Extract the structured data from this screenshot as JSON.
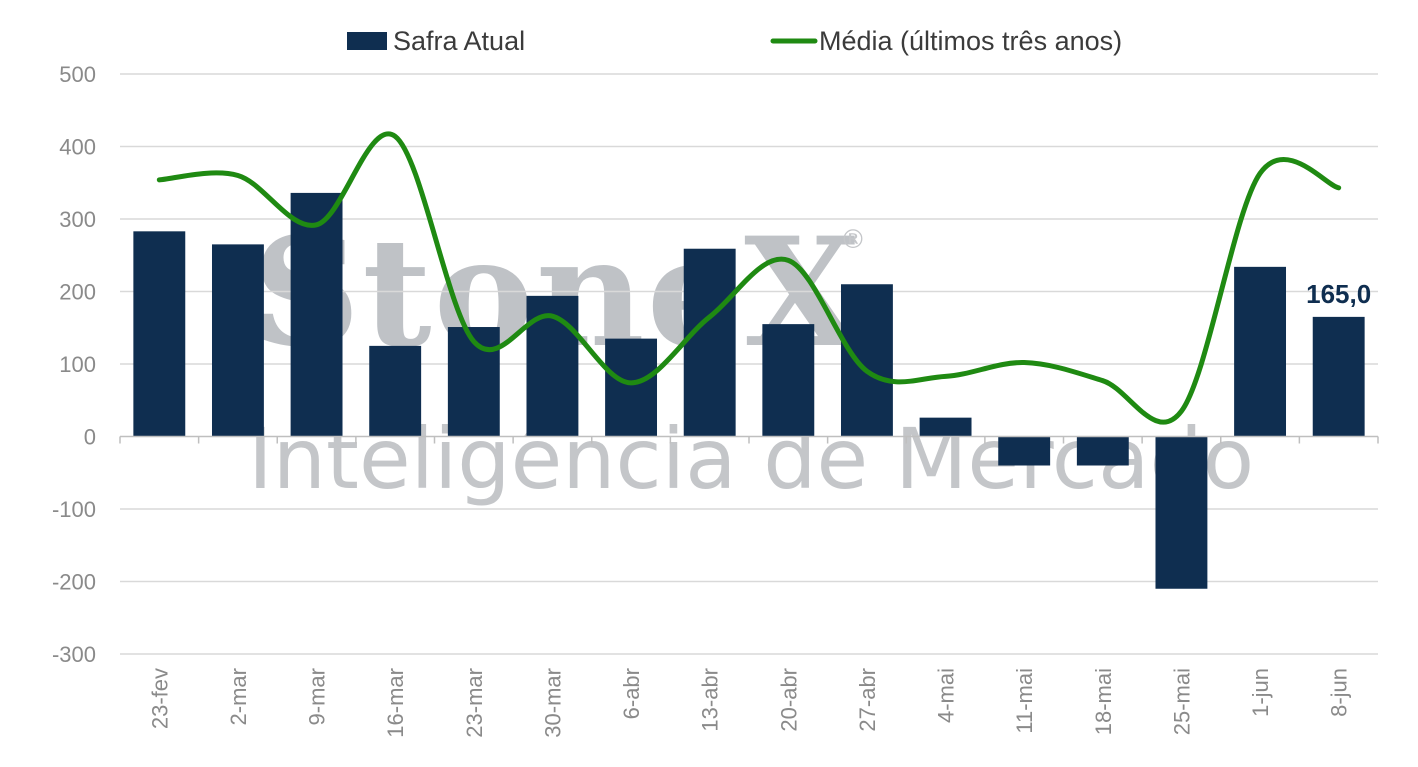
{
  "colors": {
    "bar": "#0f2e50",
    "line": "#1f8a12",
    "grid": "#d9d9d9",
    "axis": "#bfbfbf",
    "tick": "#8a8a8a",
    "watermark": "#bfc2c6"
  },
  "watermark": {
    "brand": "StoneX",
    "registered": "®",
    "subtitle": "Inteligência de Mercado"
  },
  "chart_data": {
    "type": "bar",
    "categories": [
      "23-fev",
      "2-mar",
      "9-mar",
      "16-mar",
      "23-mar",
      "30-mar",
      "6-abr",
      "13-abr",
      "20-abr",
      "27-abr",
      "4-mai",
      "11-mai",
      "18-mai",
      "25-mai",
      "1-jun",
      "8-jun"
    ],
    "series": [
      {
        "name": "Safra Atual",
        "kind": "bar",
        "values": [
          283,
          265,
          336,
          125,
          151,
          194,
          135,
          259,
          155,
          210,
          26,
          -40,
          -40,
          -210,
          234,
          165
        ]
      },
      {
        "name": "Média (últimos três anos)",
        "kind": "line",
        "values": [
          354,
          360,
          292,
          414,
          131,
          166,
          74,
          165,
          243,
          90,
          83,
          102,
          77,
          35,
          363,
          343
        ]
      }
    ],
    "yticks": [
      "500",
      "400",
      "300",
      "200",
      "100",
      "0",
      "-100",
      "-200",
      "-300"
    ],
    "ylim": [
      -300,
      500
    ],
    "grid": true,
    "legend_position": "top",
    "annotations": [
      {
        "category": "8-jun",
        "text": "165,0"
      }
    ]
  }
}
